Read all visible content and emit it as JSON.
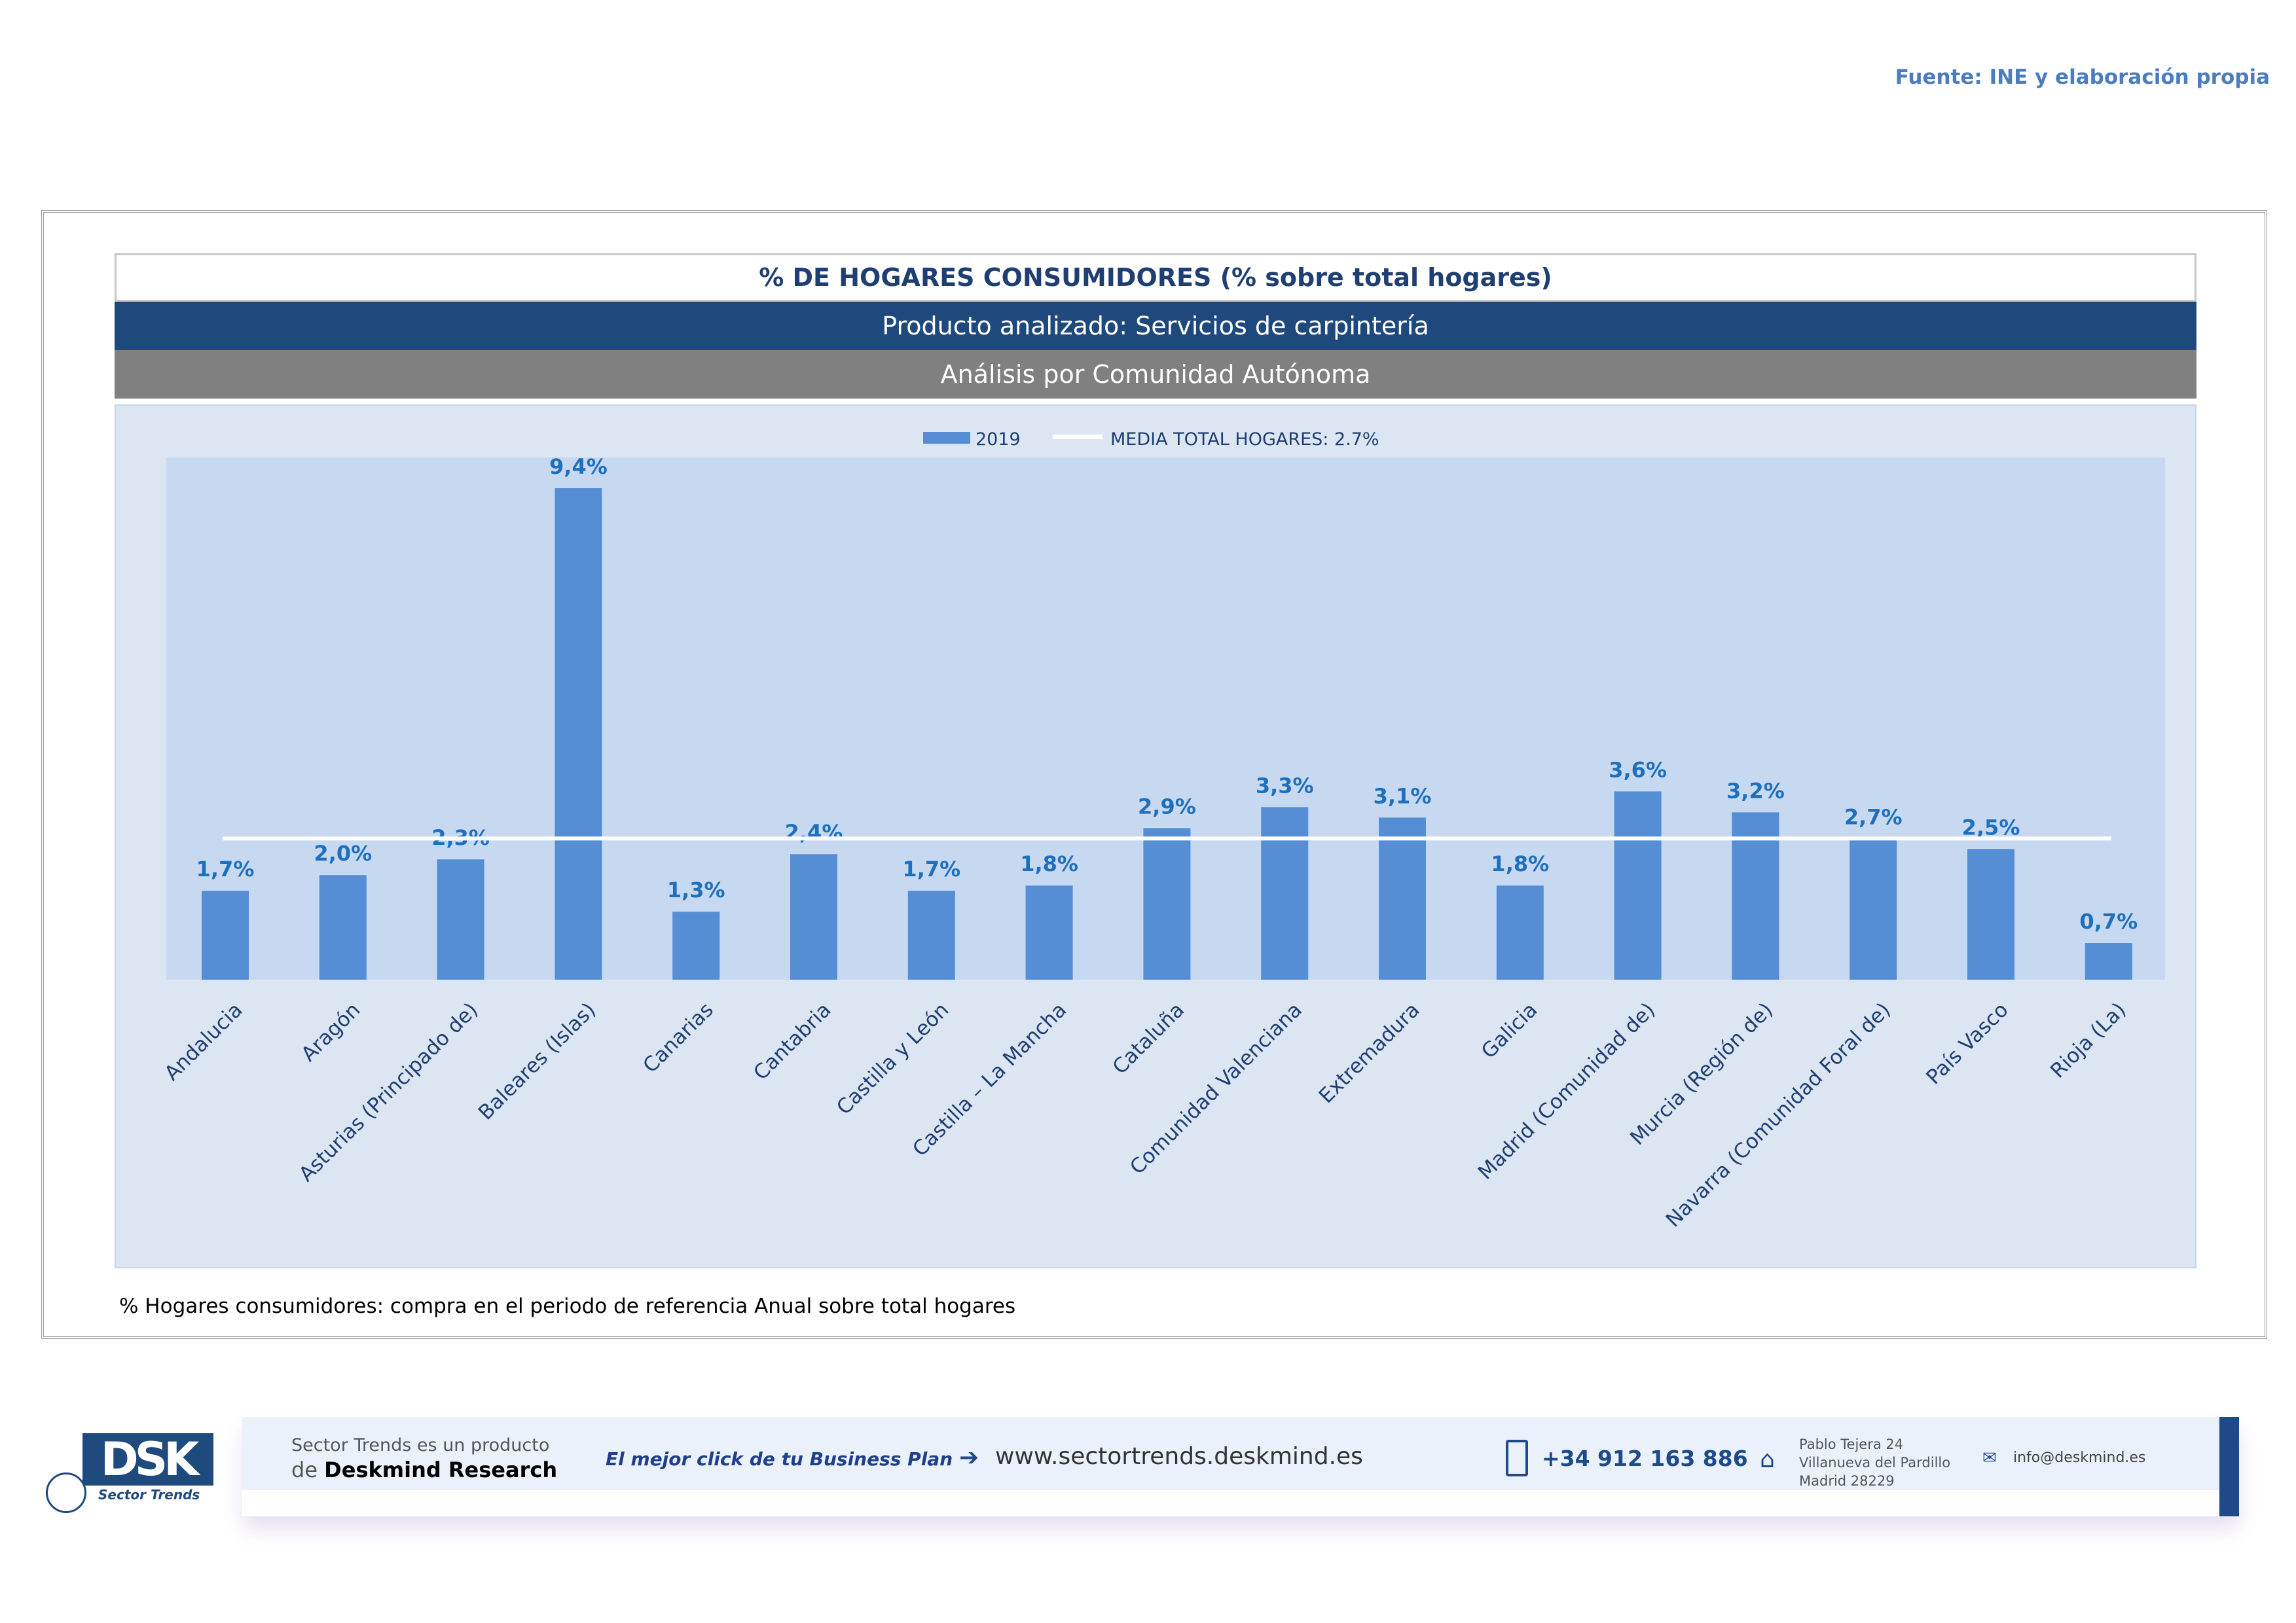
{
  "source": "Fuente: INE y elaboración propia",
  "header": {
    "title": "% DE HOGARES CONSUMIDORES (% sobre total hogares)",
    "product": "Producto analizado: Servicios de carpintería",
    "analysis": "Análisis por Comunidad Autónoma"
  },
  "footnote": "% Hogares consumidores: compra en el periodo de referencia Anual sobre total hogares",
  "chart_data": {
    "type": "bar",
    "title": "% DE HOGARES CONSUMIDORES (% sobre total hogares)",
    "categories": [
      "Andalucia",
      "Aragón",
      "Asturias (Principado de)",
      "Baleares (Islas)",
      "Canarias",
      "Cantabria",
      "Castilla y León",
      "Castilla – La Mancha",
      "Cataluña",
      "Comunidad Valenciana",
      "Extremadura",
      "Galicia",
      "Madrid (Comunidad de)",
      "Murcia (Región de)",
      "Navarra (Comunidad Foral de)",
      "País Vasco",
      "Rioja (La)"
    ],
    "series": [
      {
        "name": "2019",
        "values": [
          1.7,
          2.0,
          2.3,
          9.4,
          1.3,
          2.4,
          1.7,
          1.8,
          2.9,
          3.3,
          3.1,
          1.8,
          3.6,
          3.2,
          2.7,
          2.5,
          0.7
        ],
        "color": "#558ed5"
      }
    ],
    "labels": [
      "1,7%",
      "2,0%",
      "2,3%",
      "9,4%",
      "1,3%",
      "2,4%",
      "1,7%",
      "1,8%",
      "2,9%",
      "3,3%",
      "3,1%",
      "1,8%",
      "3,6%",
      "3,2%",
      "2,7%",
      "2,5%",
      "0,7%"
    ],
    "reference_line": {
      "name": "MEDIA TOTAL  HOGARES:  2.7%",
      "value": 2.7,
      "color": "#ffffff"
    },
    "legend": [
      "2019",
      "MEDIA TOTAL  HOGARES:  2.7%"
    ],
    "legend_position": "top",
    "ylim": [
      0,
      9.6
    ],
    "grid": false
  },
  "footer": {
    "logo_text": "DSK",
    "logo_sub": "Sector Trends",
    "product_line1": "Sector Trends es un producto",
    "product_line2_prefix": "de",
    "product_line2_brand": "Deskmind Research",
    "slogan": "El mejor click de tu Business Plan",
    "website": "www.sectortrends.deskmind.es",
    "phone": "+34 912 163 886",
    "address": [
      "Pablo Tejera 24",
      "Villanueva del Pardillo",
      "Madrid 28229"
    ],
    "email": "info@deskmind.es"
  }
}
